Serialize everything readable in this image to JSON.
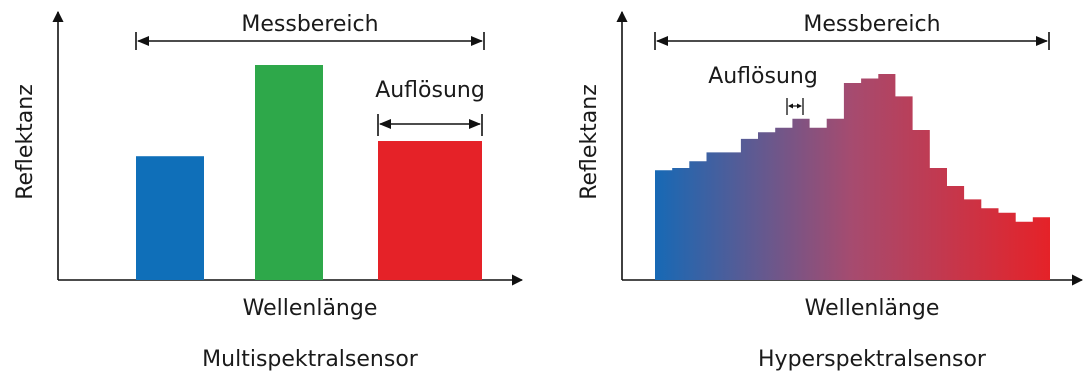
{
  "colors": {
    "axis": "#111111",
    "blue": "#0f6fb9",
    "green": "#2ea84a",
    "red": "#e52228",
    "mid": "#b04a66"
  },
  "multispectral": {
    "caption": "Multispektralsensor",
    "xlabel": "Wellenlänge",
    "ylabel": "Reflektanz",
    "range_label": "Messbereich",
    "resolution_label": "Auflösung",
    "bars": [
      {
        "color": "blue",
        "value": 0.57
      },
      {
        "color": "green",
        "value": 0.99
      },
      {
        "color": "red",
        "value": 0.64
      }
    ]
  },
  "hyperspectral": {
    "caption": "Hyperspektralsensor",
    "xlabel": "Wellenlänge",
    "ylabel": "Reflektanz",
    "range_label": "Messbereich",
    "resolution_label": "Auflösung",
    "steps": [
      0.49,
      0.5,
      0.53,
      0.57,
      0.57,
      0.63,
      0.66,
      0.68,
      0.72,
      0.68,
      0.72,
      0.88,
      0.9,
      0.92,
      0.82,
      0.67,
      0.5,
      0.42,
      0.36,
      0.32,
      0.3,
      0.26,
      0.28
    ]
  }
}
